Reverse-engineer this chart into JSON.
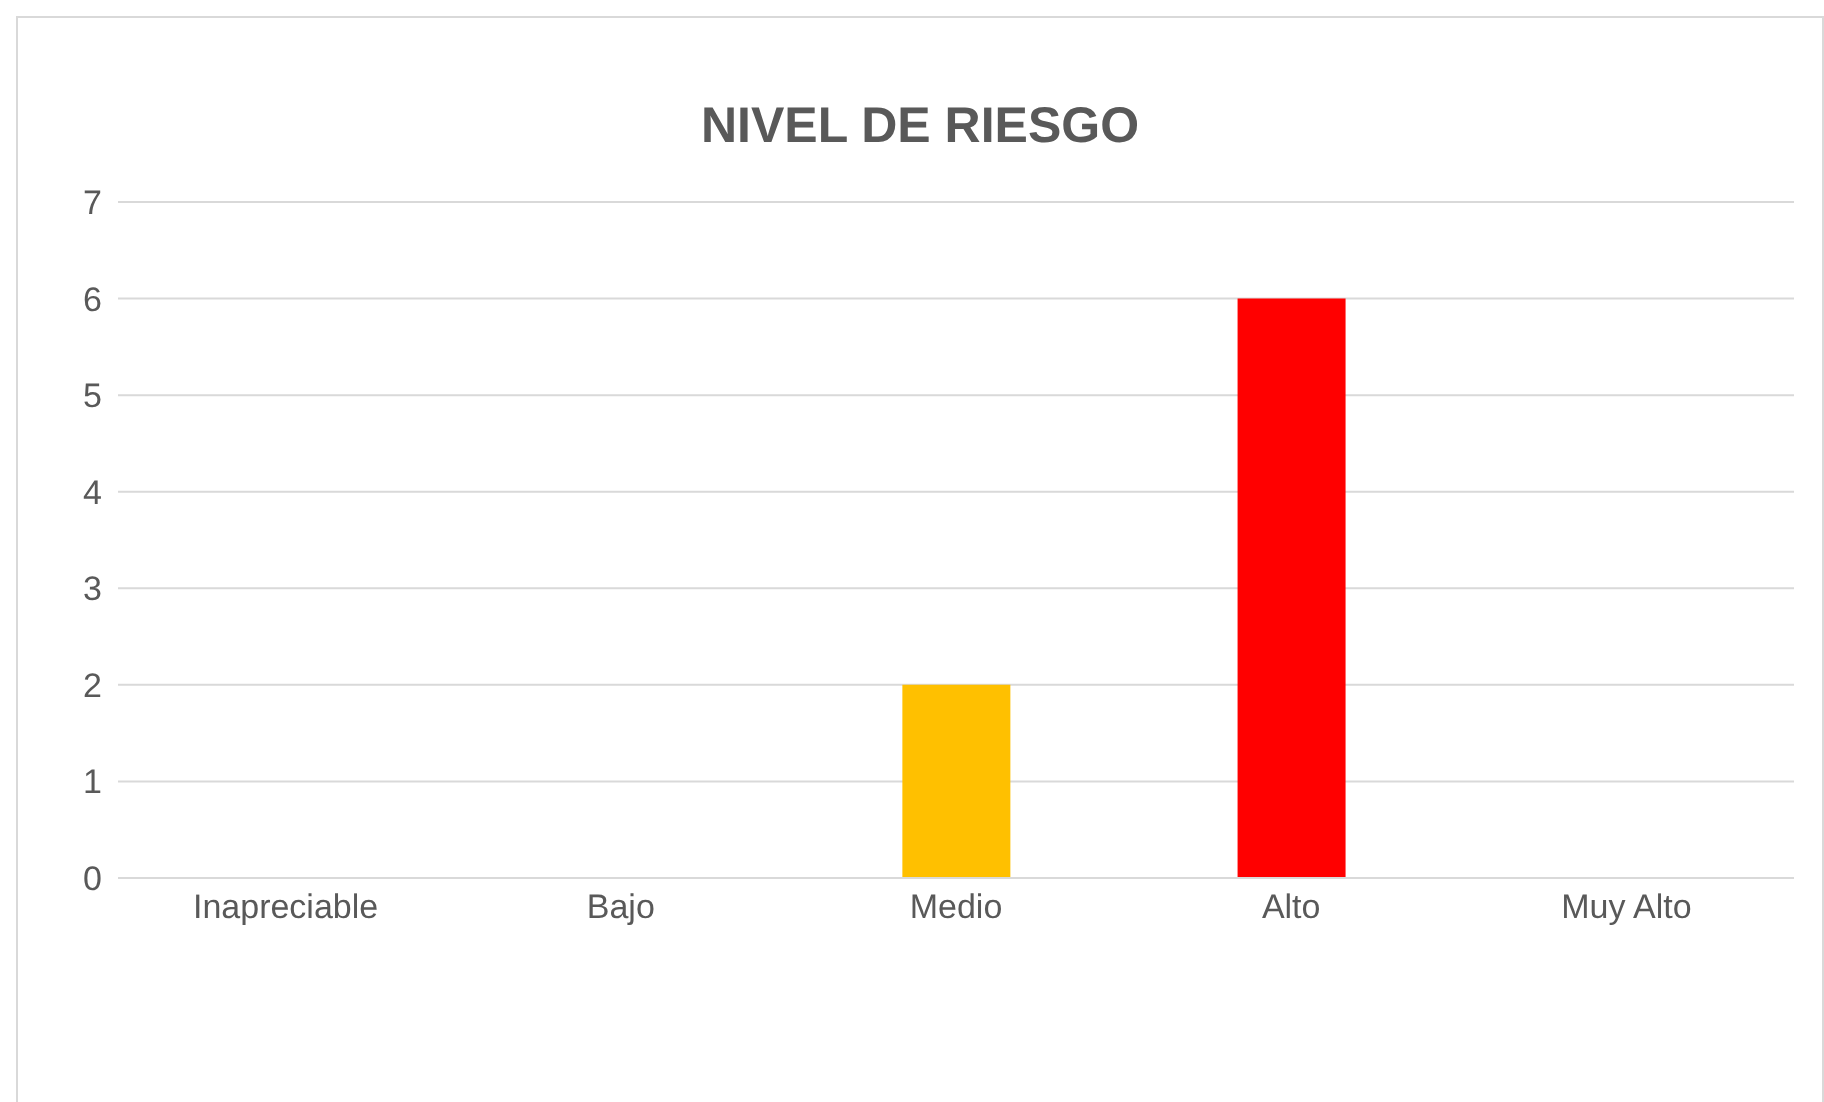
{
  "chart_data": {
    "type": "bar",
    "title": "NIVEL DE RIESGO",
    "categories": [
      "Inapreciable",
      "Bajo",
      "Medio",
      "Alto",
      "Muy Alto"
    ],
    "values": [
      0,
      0,
      2,
      6,
      0
    ],
    "colors": [
      null,
      null,
      "#ffc000",
      "#ff0000",
      null
    ],
    "ylim": [
      0,
      7
    ],
    "yticks": [
      0,
      1,
      2,
      3,
      4,
      5,
      6,
      7
    ],
    "grid": "y"
  }
}
